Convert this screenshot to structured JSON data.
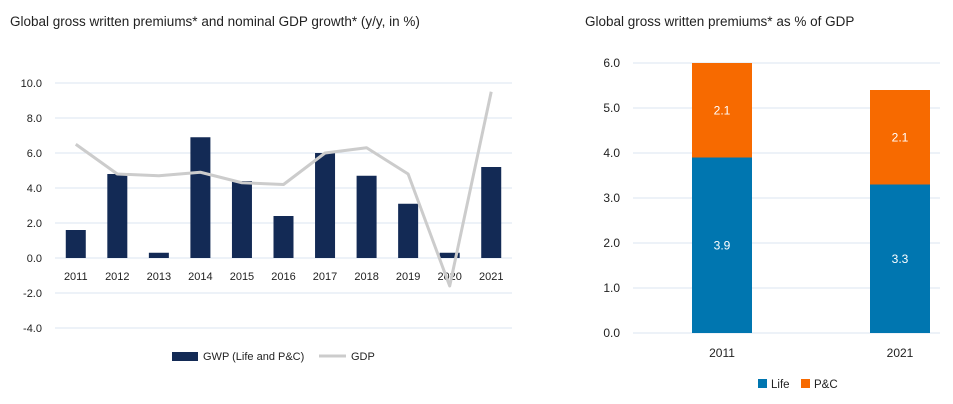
{
  "colors": {
    "gwp": "#132a55",
    "gdp": "#cccccc",
    "life": "#0076b0",
    "pc": "#f76a00",
    "grid": "#dbe5f1",
    "text": "#222222",
    "label_white": "#ffffff"
  },
  "chart_data": [
    {
      "type": "bar",
      "title": "Global gross written premiums* and nominal GDP growth* (y/y, in %)",
      "categories": [
        "2011",
        "2012",
        "2013",
        "2014",
        "2015",
        "2016",
        "2017",
        "2018",
        "2019",
        "2020",
        "2021"
      ],
      "series": [
        {
          "name": "GWP (Life and P&C)",
          "type": "bar",
          "values": [
            1.6,
            4.8,
            0.3,
            6.9,
            4.4,
            2.4,
            6.0,
            4.7,
            3.1,
            0.3,
            5.2
          ]
        },
        {
          "name": "GDP",
          "type": "line",
          "values": [
            6.5,
            4.8,
            4.7,
            4.9,
            4.3,
            4.2,
            6.0,
            6.3,
            4.8,
            -1.6,
            9.5
          ]
        }
      ],
      "ylim": [
        -4.0,
        10.0
      ],
      "yticks": [
        "10.0",
        "8.0",
        "6.0",
        "4.0",
        "2.0",
        "0.0",
        "-2.0",
        "-4.0"
      ],
      "grid": true,
      "legend": "bottom"
    },
    {
      "type": "bar",
      "stacked": true,
      "title": "Global gross written premiums* as % of GDP",
      "categories": [
        "2011",
        "2021"
      ],
      "series": [
        {
          "name": "Life",
          "values": [
            3.9,
            3.3
          ],
          "labels": [
            "3.9",
            "3.3"
          ]
        },
        {
          "name": "P&C",
          "values": [
            2.1,
            2.1
          ],
          "labels": [
            "2.1",
            "2.1"
          ]
        }
      ],
      "ylim": [
        0,
        6.0
      ],
      "yticks": [
        "6.0",
        "5.0",
        "4.0",
        "3.0",
        "2.0",
        "1.0",
        "0.0"
      ],
      "grid": true,
      "legend": "bottom"
    }
  ]
}
